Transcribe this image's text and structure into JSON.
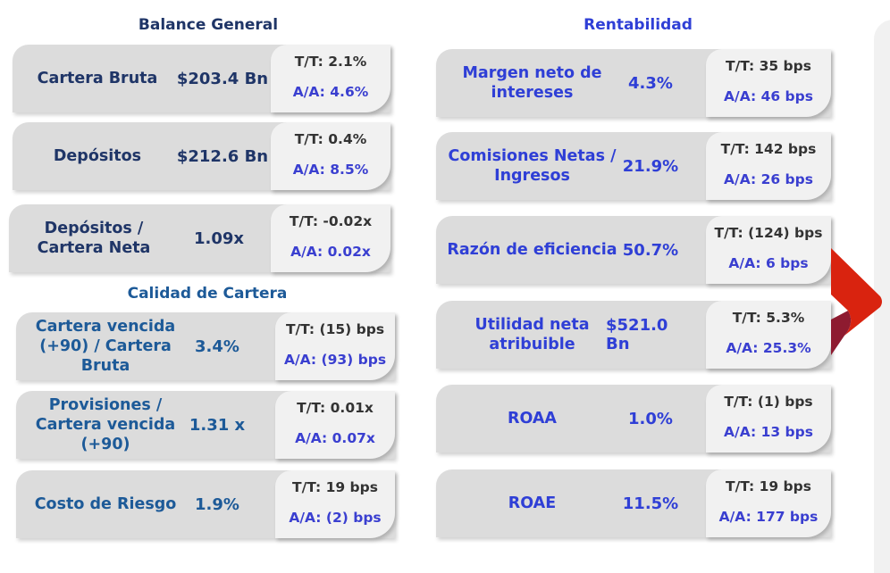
{
  "balance": {
    "title": "Balance General",
    "cards": [
      {
        "label": "Cartera Bruta",
        "value": "$203.4 Bn",
        "tt": "T/T: 2.1%",
        "aa": "A/A: 4.6%"
      },
      {
        "label": "Depósitos",
        "value": "$212.6 Bn",
        "tt": "T/T: 0.4%",
        "aa": "A/A: 8.5%"
      },
      {
        "label": "Depósitos / Cartera Neta",
        "value": "1.09x",
        "tt": "T/T: -0.02x",
        "aa": "A/A: 0.02x"
      }
    ]
  },
  "calidad": {
    "title": "Calidad de Cartera",
    "cards": [
      {
        "label": "Cartera vencida (+90) / Cartera Bruta",
        "value": "3.4%",
        "tt": "T/T: (15) bps",
        "aa": "A/A: (93) bps"
      },
      {
        "label": "Provisiones / Cartera vencida (+90)",
        "value": "1.31 x",
        "tt": "T/T: 0.01x",
        "aa": "A/A: 0.07x"
      },
      {
        "label": "Costo de Riesgo",
        "value": "1.9%",
        "tt": "T/T: 19 bps",
        "aa": "A/A: (2) bps"
      }
    ]
  },
  "rentabilidad": {
    "title": "Rentabilidad",
    "cards": [
      {
        "label": "Margen neto de intereses",
        "value": "4.3%",
        "tt": "T/T: 35 bps",
        "aa": "A/A: 46 bps"
      },
      {
        "label": "Comisiones Netas / Ingresos",
        "value": "21.9%",
        "tt": "T/T: 142 bps",
        "aa": "A/A: 26 bps"
      },
      {
        "label": "Razón de eficiencia",
        "value": "50.7%",
        "tt": "T/T: (124) bps",
        "aa": "A/A: 6 bps"
      },
      {
        "label": "Utilidad neta atribuible",
        "value": "$521.0 Bn",
        "tt": "T/T: 5.3%",
        "aa": "A/A: 25.3%"
      },
      {
        "label": "ROAA",
        "value": "1.0%",
        "tt": "T/T: (1) bps",
        "aa": "A/A: 13 bps"
      },
      {
        "label": "ROAE",
        "value": "11.5%",
        "tt": "T/T: 19 bps",
        "aa": "A/A: 177 bps"
      }
    ]
  },
  "colors": {
    "navy": "#1f3567",
    "steel": "#1d5a98",
    "blue": "#2f3fd6",
    "red": "#d9230f",
    "maroon": "#8e1b30"
  }
}
